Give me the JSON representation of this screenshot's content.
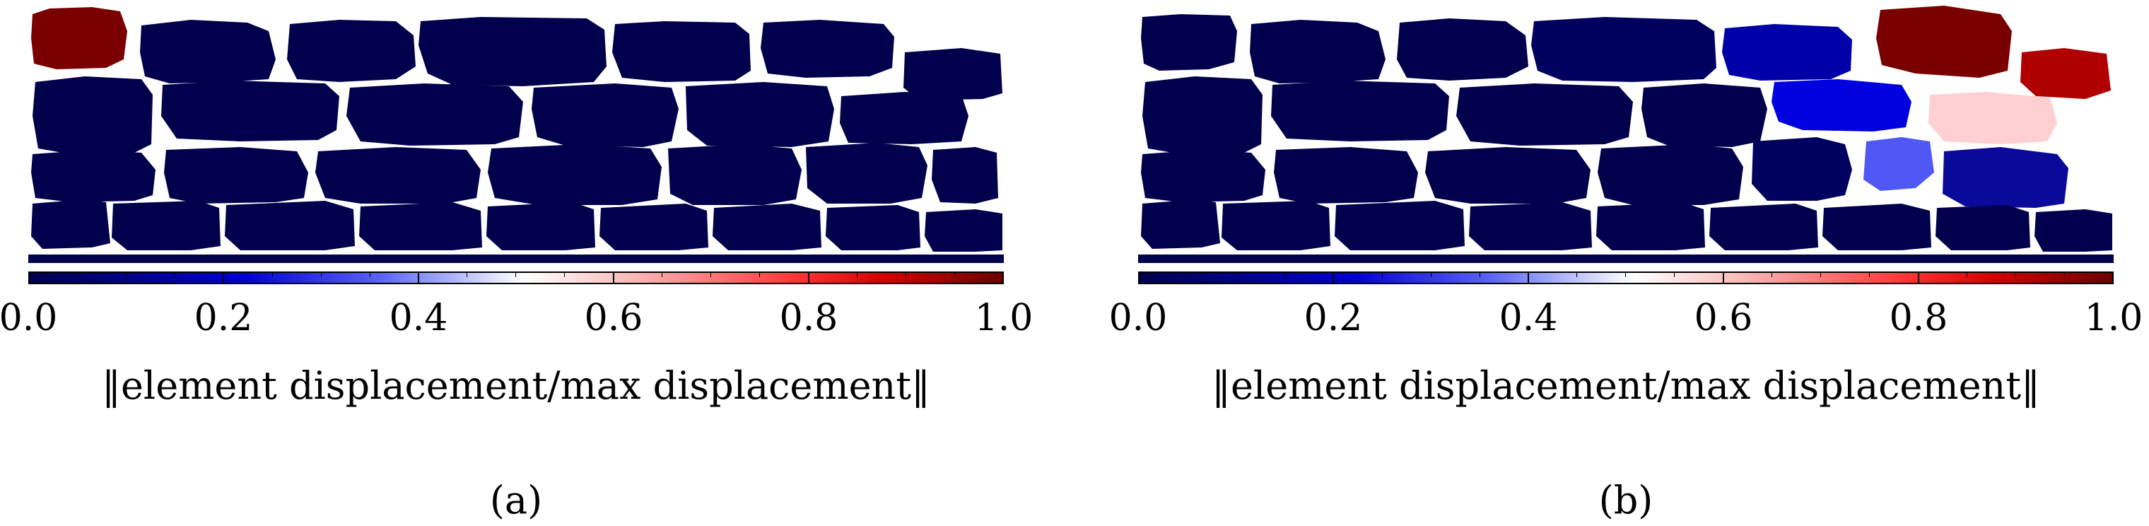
{
  "panels": [
    {
      "caption": "(a)",
      "colorbar": {
        "ticks": [
          "0.0",
          "0.2",
          "0.4",
          "0.6",
          "0.8",
          "1.0"
        ],
        "label": "‖element displacement/max displacement‖"
      }
    },
    {
      "caption": "(b)",
      "colorbar": {
        "ticks": [
          "0.0",
          "0.2",
          "0.4",
          "0.6",
          "0.8",
          "1.0"
        ],
        "label": "‖element displacement/max displacement‖"
      }
    }
  ],
  "colors": {
    "low": "#00004d",
    "mid": "#ffffff",
    "high": "#6b0000"
  }
}
